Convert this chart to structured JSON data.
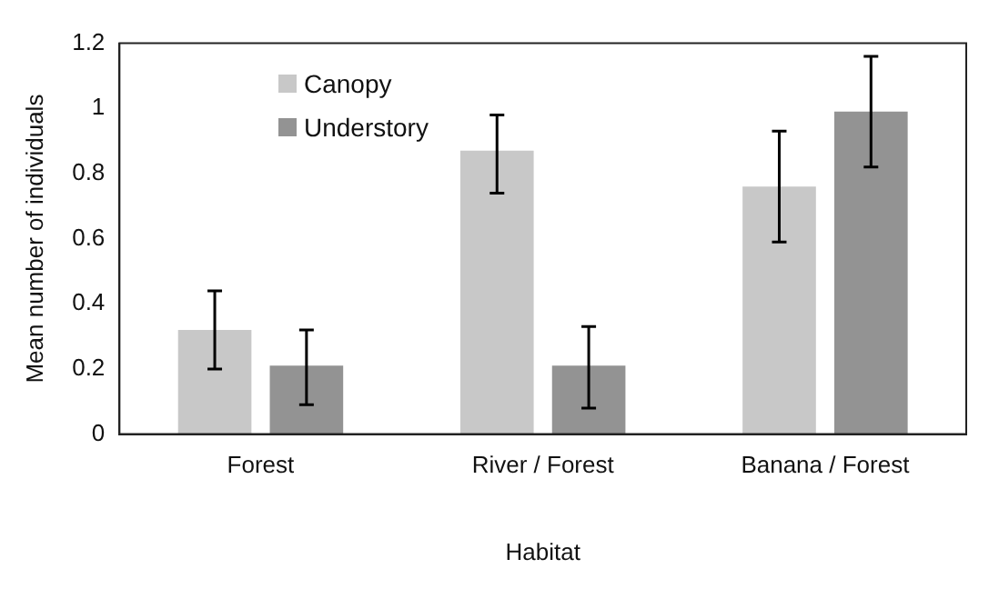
{
  "chart_data": {
    "type": "bar",
    "xlabel": "Habitat",
    "ylabel": "Mean number of individuals",
    "categories": [
      "Forest",
      "River / Forest",
      "Banana / Forest"
    ],
    "series": [
      {
        "name": "Canopy",
        "color": "#c8c8c8",
        "values": [
          0.32,
          0.87,
          0.76
        ],
        "errors": [
          [
            0.2,
            0.44
          ],
          [
            0.74,
            0.98
          ],
          [
            0.59,
            0.93
          ]
        ]
      },
      {
        "name": "Understory",
        "color": "#939393",
        "values": [
          0.21,
          0.21,
          0.99
        ],
        "errors": [
          [
            0.09,
            0.32
          ],
          [
            0.08,
            0.33
          ],
          [
            0.82,
            1.16
          ]
        ]
      }
    ],
    "ylim": [
      0,
      1.2
    ],
    "yticks": [
      0,
      0.2,
      0.4,
      0.6,
      0.8,
      1,
      1.2
    ],
    "grid": false,
    "legend": "top left"
  }
}
